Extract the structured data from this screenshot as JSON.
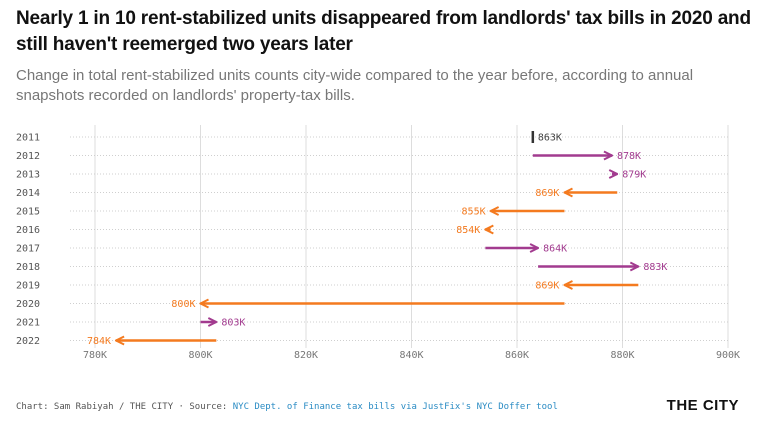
{
  "title": "Nearly 1 in 10 rent-stabilized units disappeared from landlords' tax bills in 2020 and still haven't reemerged two years later",
  "subtitle": "Change in total rent-stabilized units counts city-wide compared to the year before, according to annual snapshots recorded on landlords' property-tax bills.",
  "footer": {
    "credit": "Chart: Sam Rabiyah / THE CITY · Source: ",
    "source": "NYC Dept. of Finance tax bills via JustFix's NYC Doffer tool"
  },
  "logo": "THE CITY",
  "colors": {
    "increase": "#a23b8f",
    "decrease": "#f47a1f",
    "baseline": "#333333",
    "grid": "#dddddd"
  },
  "chart_data": {
    "type": "arrow",
    "title": "Nearly 1 in 10 rent-stabilized units disappeared from landlords' tax bills in 2020 and still haven't reemerged two years later",
    "xlabel": "",
    "ylabel": "",
    "xlim": [
      780,
      900
    ],
    "x_ticks": [
      780,
      800,
      820,
      840,
      860,
      880,
      900
    ],
    "x_tick_labels": [
      "780K",
      "800K",
      "820K",
      "840K",
      "860K",
      "880K",
      "900K"
    ],
    "rows": [
      {
        "year": "2011",
        "from": 863,
        "to": 863,
        "label": "863K"
      },
      {
        "year": "2012",
        "from": 863,
        "to": 878,
        "label": "878K"
      },
      {
        "year": "2013",
        "from": 878,
        "to": 879,
        "label": "879K"
      },
      {
        "year": "2014",
        "from": 879,
        "to": 869,
        "label": "869K"
      },
      {
        "year": "2015",
        "from": 869,
        "to": 855,
        "label": "855K"
      },
      {
        "year": "2016",
        "from": 855,
        "to": 854,
        "label": "854K"
      },
      {
        "year": "2017",
        "from": 854,
        "to": 864,
        "label": "864K"
      },
      {
        "year": "2018",
        "from": 864,
        "to": 883,
        "label": "883K"
      },
      {
        "year": "2019",
        "from": 883,
        "to": 869,
        "label": "869K"
      },
      {
        "year": "2020",
        "from": 869,
        "to": 800,
        "label": "800K"
      },
      {
        "year": "2021",
        "from": 800,
        "to": 803,
        "label": "803K"
      },
      {
        "year": "2022",
        "from": 803,
        "to": 784,
        "label": "784K"
      }
    ]
  }
}
